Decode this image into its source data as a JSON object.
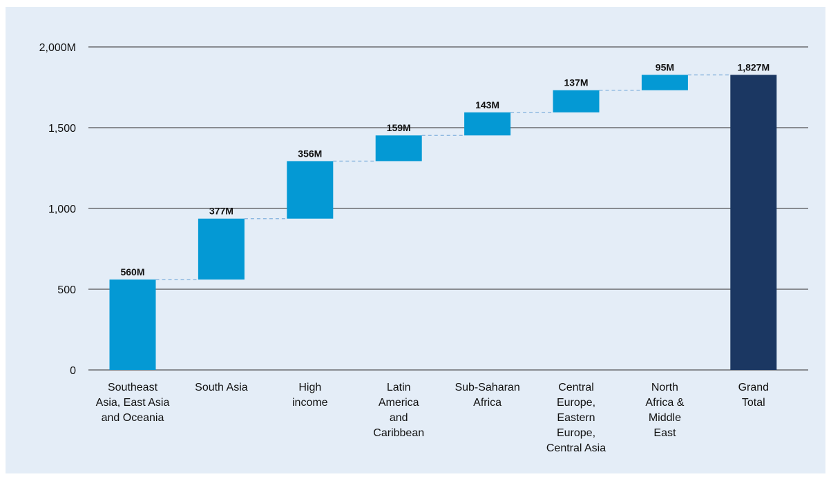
{
  "chart_data": {
    "type": "waterfall",
    "title": "",
    "xlabel": "",
    "ylabel": "",
    "ylim": [
      0,
      2000
    ],
    "yticks": [
      {
        "value": 0,
        "label": "0"
      },
      {
        "value": 500,
        "label": "500"
      },
      {
        "value": 1000,
        "label": "1,000"
      },
      {
        "value": 1500,
        "label": "1,500"
      },
      {
        "value": 2000,
        "label": "2,000M"
      }
    ],
    "grid": true,
    "categories": [
      [
        "Southeast",
        "Asia, East Asia",
        "and Oceania"
      ],
      [
        "South Asia"
      ],
      [
        "High",
        "income"
      ],
      [
        "Latin",
        "America",
        "and",
        "Caribbean"
      ],
      [
        "Sub-Saharan",
        "Africa"
      ],
      [
        "Central",
        "Europe,",
        "Eastern",
        "Europe,",
        "Central Asia"
      ],
      [
        "North",
        "Africa &",
        "Middle",
        "East"
      ],
      [
        "Grand",
        "Total"
      ]
    ],
    "values": [
      560,
      377,
      356,
      159,
      143,
      137,
      95,
      1827
    ],
    "is_total": [
      false,
      false,
      false,
      false,
      false,
      false,
      false,
      true
    ],
    "data_labels": [
      "560M",
      "377M",
      "356M",
      "159M",
      "143M",
      "137M",
      "95M",
      "1,827M"
    ],
    "colors": {
      "increment": "#0499d4",
      "total": "#1b3762",
      "connector": "#8fb9e0",
      "grid": "#2b2b2b"
    }
  }
}
